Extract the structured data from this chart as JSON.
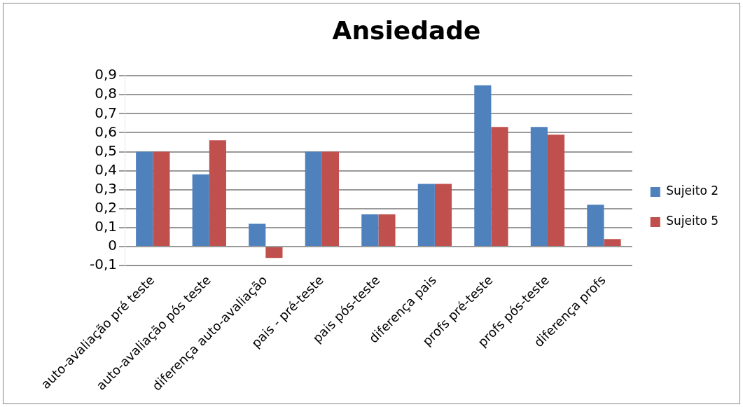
{
  "chart_data": {
    "type": "bar",
    "title": "Ansiedade",
    "categories": [
      "auto-avaliação pré teste",
      "auto-avaliação pós teste",
      "diferença auto-avaliação",
      "pais - pré-teste",
      "pais pós-teste",
      "diferença pais",
      "profs pré-teste",
      "profs pós-teste",
      "diferença profs"
    ],
    "series": [
      {
        "name": "Sujeito 2",
        "color": "#4f81bd",
        "values": [
          0.5,
          0.38,
          0.12,
          0.5,
          0.17,
          0.33,
          0.85,
          0.63,
          0.22
        ]
      },
      {
        "name": "Sujeito 5",
        "color": "#c0504d",
        "values": [
          0.5,
          0.56,
          -0.06,
          0.5,
          0.17,
          0.33,
          0.63,
          0.59,
          0.04
        ]
      }
    ],
    "ylim": [
      -0.1,
      0.9
    ],
    "yticks": [
      {
        "value": -0.1,
        "label": "-0,1"
      },
      {
        "value": 0,
        "label": "0"
      },
      {
        "value": 0.1,
        "label": "0,1"
      },
      {
        "value": 0.2,
        "label": "0,2"
      },
      {
        "value": 0.3,
        "label": "0,3"
      },
      {
        "value": 0.4,
        "label": "0,4"
      },
      {
        "value": 0.5,
        "label": "0,5"
      },
      {
        "value": 0.6,
        "label": "0,6"
      },
      {
        "value": 0.7,
        "label": "0,7"
      },
      {
        "value": 0.8,
        "label": "0,8"
      },
      {
        "value": 0.9,
        "label": "0,9"
      }
    ],
    "grid": "y",
    "legend": "right"
  }
}
